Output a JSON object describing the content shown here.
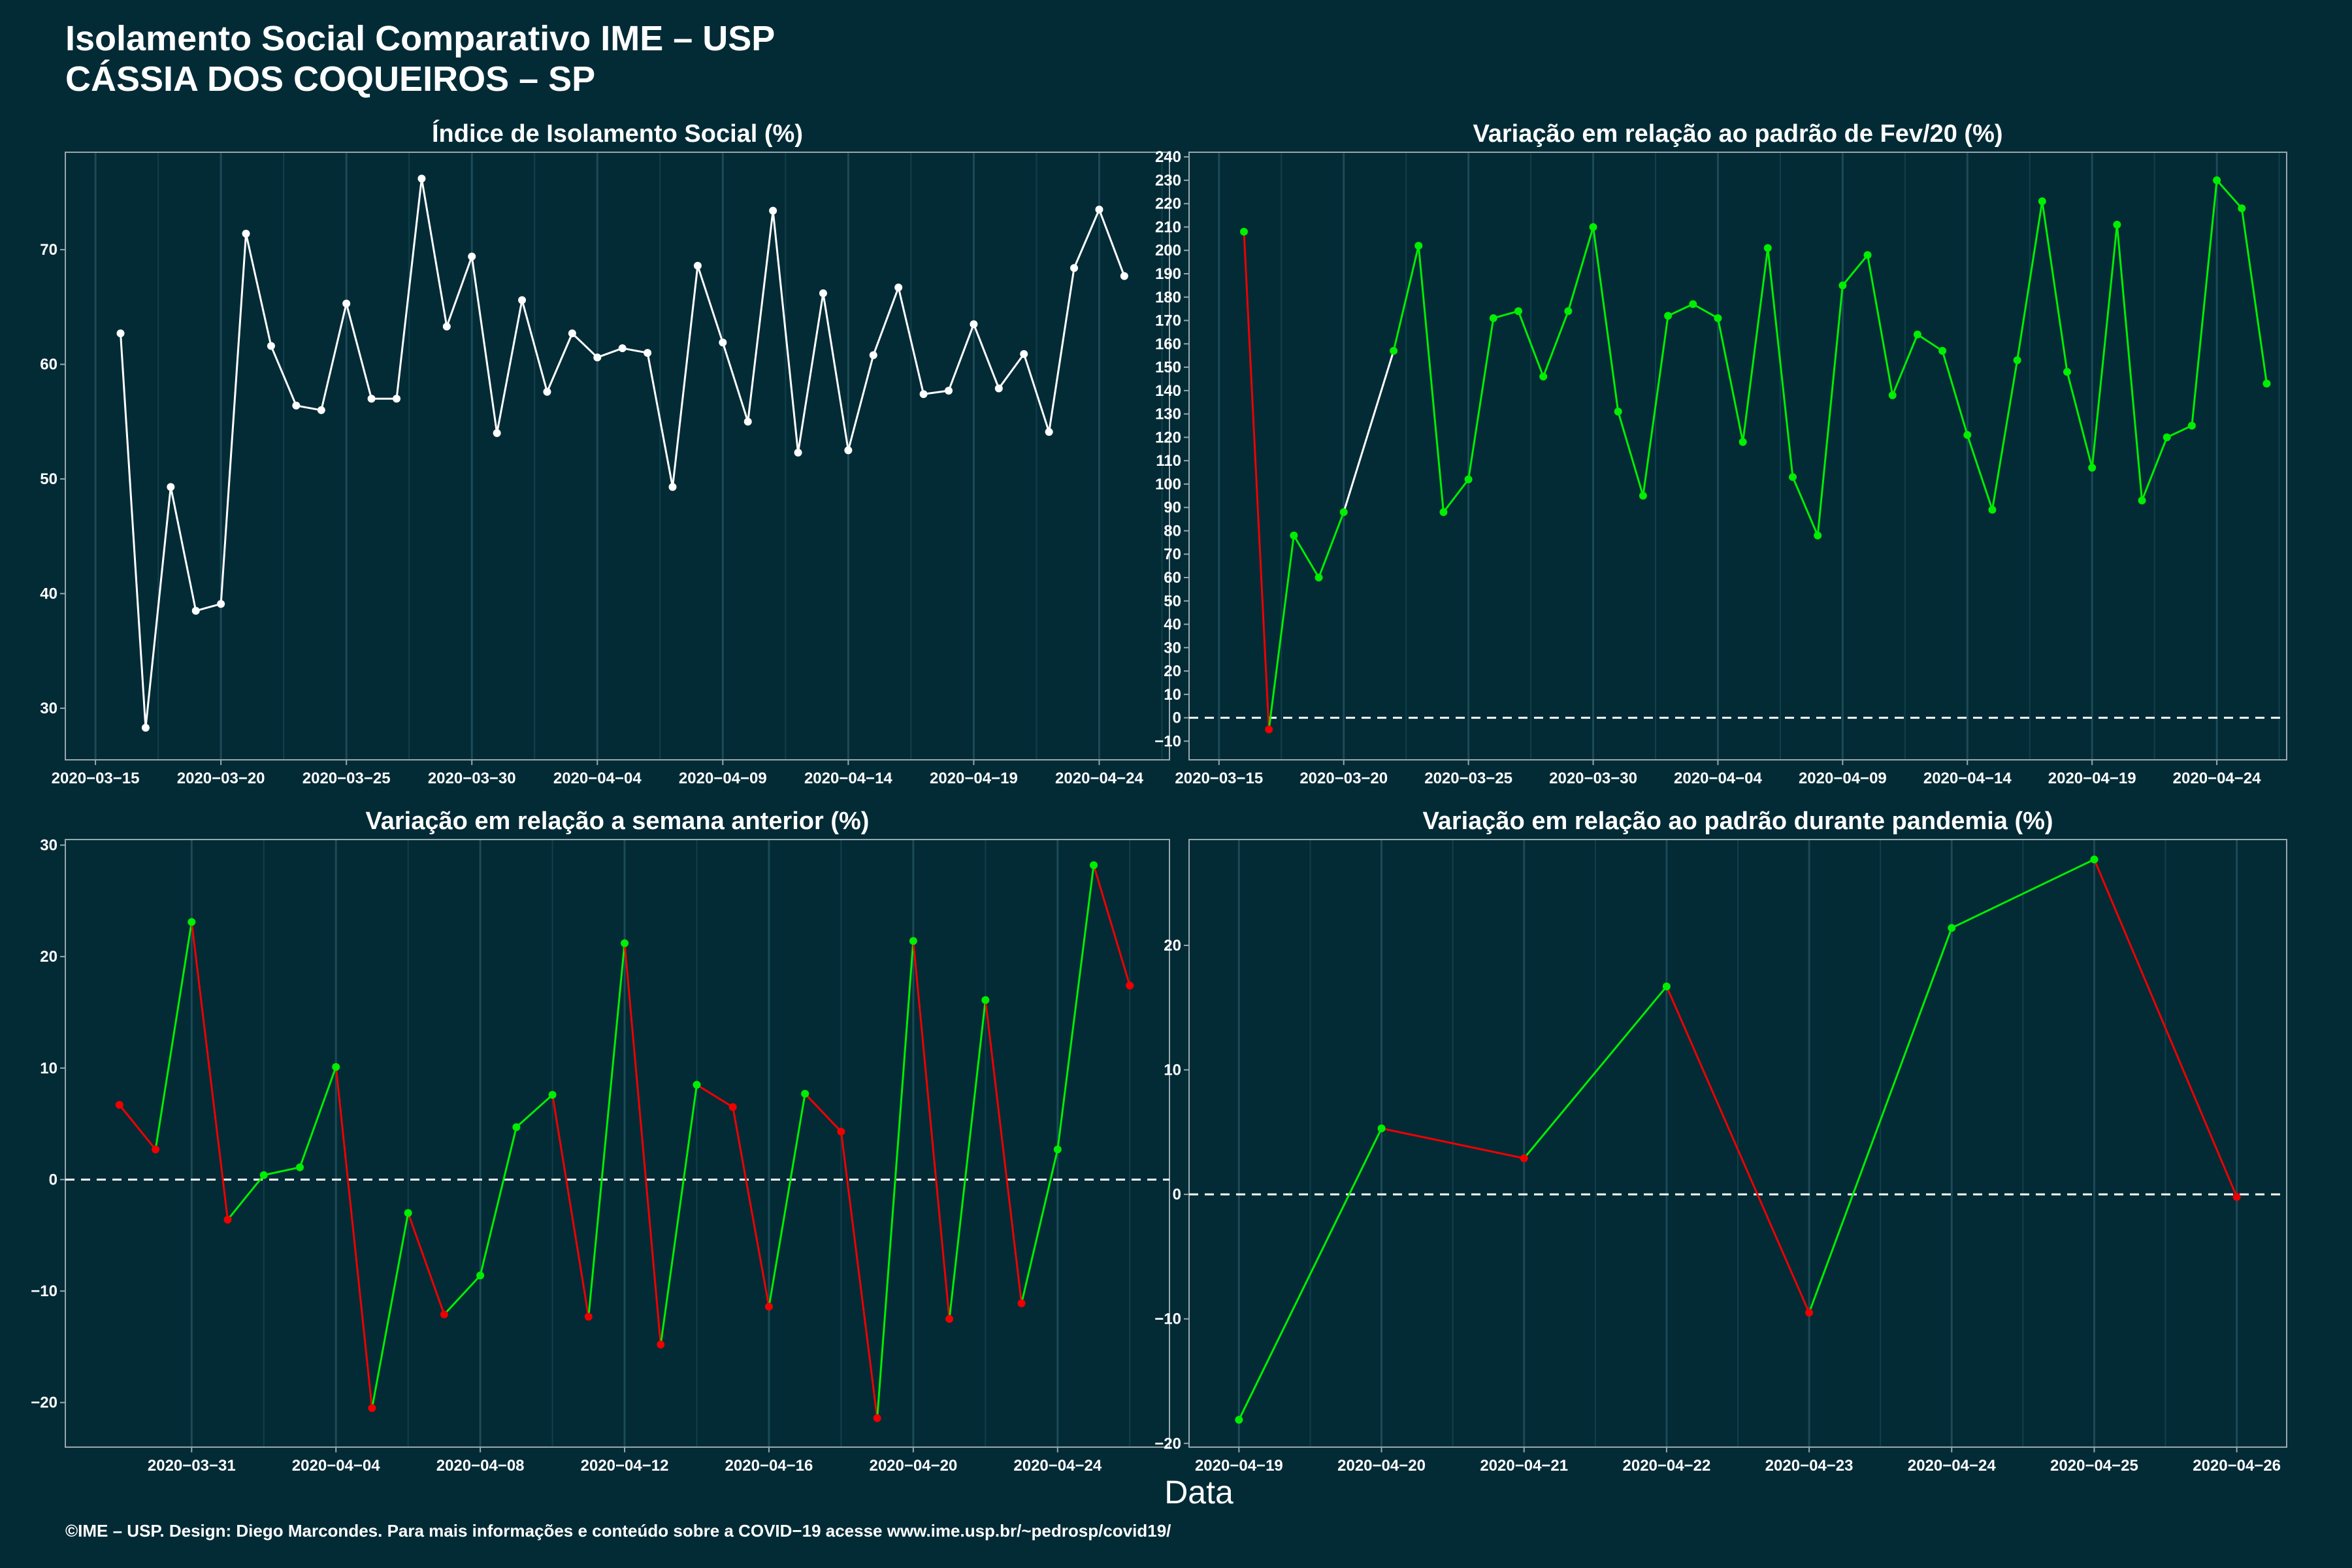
{
  "header": {
    "title_line1": "Isolamento Social Comparativo IME – USP",
    "title_line2": "CÁSSIA DOS COQUEIROS – SP"
  },
  "footer": "©IME – USP. Design: Diego Marcondes. Para mais informações e conteúdo sobre a COVID−19 acesse www.ime.usp.br/~pedrosp/covid19/",
  "xlabel": "Data",
  "colors": {
    "background": "#022b36",
    "up": "#00ee00",
    "down": "#ee0000",
    "neutral": "#ffffff"
  },
  "chart_data": [
    {
      "type": "line",
      "title": "Índice de Isolamento Social (%)",
      "x_start": "2020-03-16",
      "x_ticks": [
        "2020−03−15",
        "2020−03−20",
        "2020−03−25",
        "2020−03−30",
        "2020−04−04",
        "2020−04−09",
        "2020−04−14",
        "2020−04−19",
        "2020−04−24"
      ],
      "tick_days": [
        -1,
        4,
        9,
        14,
        19,
        24,
        29,
        34,
        39
      ],
      "y_ticks": [
        "30",
        "40",
        "50",
        "60",
        "70"
      ],
      "ylim": [
        25.5,
        78.5
      ],
      "xlim": [
        -2.2,
        41.8
      ],
      "values": [
        62.7,
        28.3,
        49.3,
        38.5,
        39.1,
        71.4,
        61.6,
        56.4,
        56.0,
        65.3,
        57.0,
        57.0,
        76.2,
        63.3,
        69.4,
        54.0,
        65.6,
        57.6,
        62.7,
        60.6,
        61.4,
        61.0,
        49.3,
        68.6,
        61.9,
        55.0,
        73.4,
        52.3,
        66.2,
        52.5,
        60.8,
        66.7,
        57.4,
        57.7,
        63.5,
        57.9,
        60.9,
        54.1,
        68.4,
        73.5,
        67.7
      ],
      "color_mode": "white",
      "zero_line": false
    },
    {
      "type": "line",
      "title": "Variação em relação ao padrão de Fev/20 (%)",
      "x_start": "2020-03-16",
      "x_ticks": [
        "2020−03−15",
        "2020−03−20",
        "2020−03−25",
        "2020−03−30",
        "2020−04−04",
        "2020−04−09",
        "2020−04−14",
        "2020−04−19",
        "2020−04−24"
      ],
      "tick_days": [
        -1,
        4,
        9,
        14,
        19,
        24,
        29,
        34,
        39
      ],
      "y_ticks": [
        "−10",
        "0",
        "10",
        "20",
        "30",
        "40",
        "50",
        "60",
        "70",
        "80",
        "90",
        "100",
        "110",
        "120",
        "130",
        "140",
        "150",
        "160",
        "170",
        "180",
        "190",
        "200",
        "210",
        "220",
        "230",
        "240"
      ],
      "ylim": [
        -18,
        242
      ],
      "xlim": [
        -2.2,
        41.8
      ],
      "values": [
        208,
        -5,
        78,
        60,
        88,
        null,
        157,
        202,
        88,
        102,
        171,
        174,
        146,
        174,
        210,
        131,
        95,
        172,
        177,
        171,
        118,
        201,
        103,
        78,
        185,
        198,
        138,
        164,
        157,
        121,
        89,
        153,
        221,
        148,
        107,
        211,
        93,
        120,
        125,
        230,
        218,
        143
      ],
      "color_mode": "sign",
      "zero_line": true
    },
    {
      "type": "line",
      "title": "Variação em relação a semana anterior (%)",
      "x_start": "2020-03-29",
      "x_ticks": [
        "2020−03−31",
        "2020−04−04",
        "2020−04−08",
        "2020−04−12",
        "2020−04−16",
        "2020−04−20",
        "2020−04−24"
      ],
      "tick_days": [
        2,
        6,
        10,
        14,
        18,
        22,
        26
      ],
      "y_ticks": [
        "−20",
        "−10",
        "0",
        "10",
        "20",
        "30"
      ],
      "ylim": [
        -24,
        30.5
      ],
      "xlim": [
        -1.5,
        29.1
      ],
      "values": [
        6.7,
        2.7,
        23.1,
        -3.6,
        0.4,
        1.1,
        10.1,
        -20.5,
        -3.0,
        -12.1,
        -8.6,
        4.7,
        7.6,
        -12.3,
        21.2,
        -14.8,
        8.5,
        6.5,
        -11.4,
        7.7,
        4.3,
        -21.4,
        21.4,
        -12.5,
        16.1,
        -11.1,
        2.7,
        28.2,
        17.4
      ],
      "color_mode": "trend",
      "zero_line": true
    },
    {
      "type": "line",
      "title": "Variação em relação ao padrão durante pandemia (%)",
      "x_start": "2020-04-19",
      "x_ticks": [
        "2020−04−19",
        "2020−04−20",
        "2020−04−21",
        "2020−04−22",
        "2020−04−23",
        "2020−04−24",
        "2020−04−25",
        "2020−04−26"
      ],
      "tick_days": [
        0,
        1,
        2,
        3,
        4,
        5,
        6,
        7
      ],
      "y_ticks": [
        "−20",
        "−10",
        "0",
        "10",
        "20"
      ],
      "ylim": [
        -20.3,
        28.5
      ],
      "xlim": [
        -0.35,
        7.35
      ],
      "values": [
        -18.1,
        5.3,
        2.9,
        16.7,
        -9.5,
        21.4,
        26.9,
        -0.2
      ],
      "color_mode": "trend",
      "zero_line": true
    }
  ]
}
